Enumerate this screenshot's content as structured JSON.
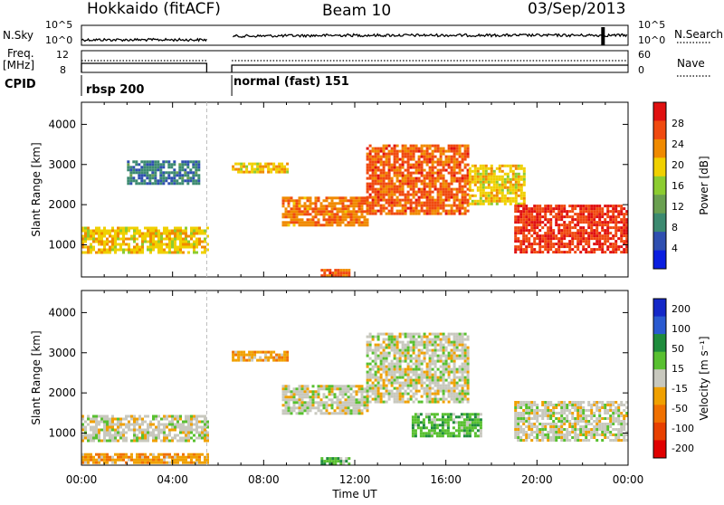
{
  "header": {
    "station": "Hokkaido (fitACF)",
    "beam": "Beam 10",
    "date": "03/Sep/2013"
  },
  "noise_panel": {
    "left_label": "N.Sky",
    "right_label": "N.Search",
    "left_ticks": [
      "10^5",
      "10^0"
    ],
    "right_ticks": [
      "10^5",
      "10^0"
    ]
  },
  "freq_panel": {
    "left_label_1": "Freq.",
    "left_label_2": "[MHz]",
    "left_ticks": [
      "12",
      "8"
    ],
    "right_label": "Nave",
    "right_ticks": [
      "60",
      "0"
    ]
  },
  "cpid": {
    "label": "CPID",
    "modes": [
      "rbsp 200",
      "normal (fast) 151"
    ]
  },
  "colors": {
    "power_scale": [
      "#0a1ee0",
      "#2f4fb0",
      "#3c8a70",
      "#6aa050",
      "#8ccc30",
      "#f0d000",
      "#f08a00",
      "#f04a10",
      "#e01010"
    ],
    "velocity_scale": [
      "#1428c8",
      "#2a5ad0",
      "#1e8c3c",
      "#58c030",
      "#c8c8be",
      "#f0a000",
      "#f07000",
      "#e84000",
      "#e00000"
    ]
  },
  "chart_data": [
    {
      "type": "heatmap",
      "title": "",
      "ylabel": "Slant Range [km]",
      "ylim": [
        200,
        4550
      ],
      "ytick_labels": [
        "1000",
        "2000",
        "3000",
        "4000"
      ],
      "xlim_hours": [
        0,
        24
      ],
      "xtick_labels": [
        "00:00",
        "04:00",
        "08:00",
        "12:00",
        "16:00",
        "20:00",
        "00:00"
      ],
      "colorbar": {
        "label": "Power [dB]",
        "tick_labels": [
          "28",
          "24",
          "20",
          "16",
          "12",
          "8",
          "4"
        ]
      },
      "echo_regions": [
        {
          "hours": [
            0.0,
            5.5
          ],
          "range_km": [
            800,
            1450
          ],
          "power_db": 20
        },
        {
          "hours": [
            2.0,
            5.2
          ],
          "range_km": [
            2500,
            3100
          ],
          "power_db": 8
        },
        {
          "hours": [
            6.6,
            9.0
          ],
          "range_km": [
            2800,
            3050
          ],
          "power_db": 20
        },
        {
          "hours": [
            8.8,
            12.5
          ],
          "range_km": [
            1500,
            2200
          ],
          "power_db": 24
        },
        {
          "hours": [
            12.5,
            17.0
          ],
          "range_km": [
            1800,
            3500
          ],
          "power_db": 26
        },
        {
          "hours": [
            17.0,
            19.5
          ],
          "range_km": [
            2000,
            3000
          ],
          "power_db": 20
        },
        {
          "hours": [
            19.0,
            24.0
          ],
          "range_km": [
            800,
            2000
          ],
          "power_db": 28
        },
        {
          "hours": [
            10.5,
            11.7
          ],
          "range_km": [
            250,
            400
          ],
          "power_db": 26
        }
      ]
    },
    {
      "type": "heatmap",
      "title": "",
      "ylabel": "Slant Range [km]",
      "ylim": [
        200,
        4550
      ],
      "ytick_labels": [
        "1000",
        "2000",
        "3000",
        "4000"
      ],
      "xlim_hours": [
        0,
        24
      ],
      "xtick_labels": [
        "00:00",
        "04:00",
        "08:00",
        "12:00",
        "16:00",
        "20:00",
        "00:00"
      ],
      "xlabel": "Time UT",
      "colorbar": {
        "label": "Velocity [m s⁻¹]",
        "tick_labels": [
          "200",
          "100",
          "50",
          "15",
          "-15",
          "-50",
          "-100",
          "-200"
        ]
      },
      "echo_regions": [
        {
          "hours": [
            0.0,
            5.5
          ],
          "range_km": [
            800,
            1450
          ],
          "velocity_ms": 0
        },
        {
          "hours": [
            0.0,
            5.5
          ],
          "range_km": [
            250,
            500
          ],
          "velocity_ms": -60
        },
        {
          "hours": [
            6.6,
            9.0
          ],
          "range_km": [
            2800,
            3050
          ],
          "velocity_ms": -60
        },
        {
          "hours": [
            8.8,
            12.5
          ],
          "range_km": [
            1500,
            2200
          ],
          "velocity_ms": 0
        },
        {
          "hours": [
            12.5,
            17.0
          ],
          "range_km": [
            1800,
            3500
          ],
          "velocity_ms": 0
        },
        {
          "hours": [
            14.5,
            17.5
          ],
          "range_km": [
            900,
            1500
          ],
          "velocity_ms": 60
        },
        {
          "hours": [
            10.5,
            11.7
          ],
          "range_km": [
            250,
            400
          ],
          "velocity_ms": 60
        },
        {
          "hours": [
            19.0,
            24.0
          ],
          "range_km": [
            800,
            1800
          ],
          "velocity_ms": 0
        }
      ]
    }
  ]
}
